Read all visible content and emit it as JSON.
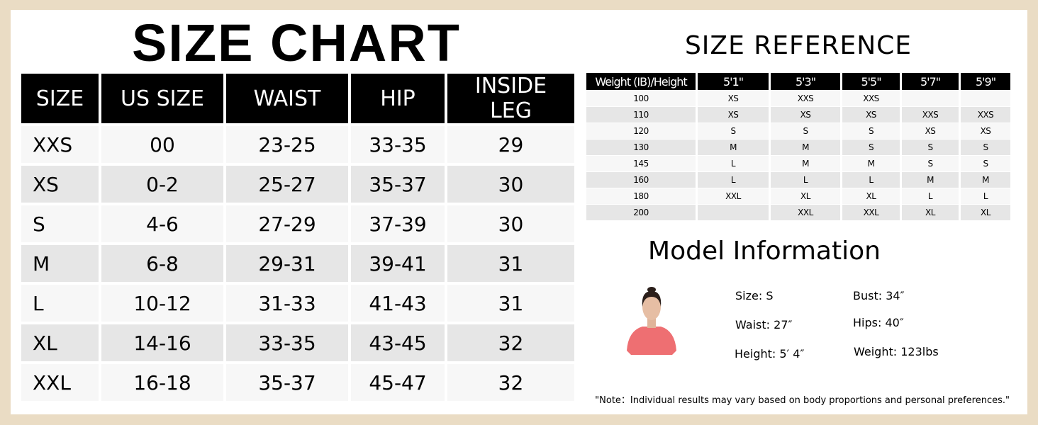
{
  "size_chart": {
    "title": "SIZE  CHART",
    "headers": [
      "SIZE",
      "US SIZE",
      "WAIST",
      "HIP",
      "INSIDE LEG"
    ],
    "rows": [
      [
        "XXS",
        "00",
        "23-25",
        "33-35",
        "29"
      ],
      [
        "XS",
        "0-2",
        "25-27",
        "35-37",
        "30"
      ],
      [
        "S",
        "4-6",
        "27-29",
        "37-39",
        "30"
      ],
      [
        "M",
        "6-8",
        "29-31",
        "39-41",
        "31"
      ],
      [
        "L",
        "10-12",
        "31-33",
        "41-43",
        "31"
      ],
      [
        "XL",
        "14-16",
        "33-35",
        "43-45",
        "32"
      ],
      [
        "XXL",
        "16-18",
        "35-37",
        "45-47",
        "32"
      ]
    ]
  },
  "size_reference": {
    "title": "SIZE  REFERENCE",
    "headers": [
      "Weight (IB)/Height",
      "5'1\"",
      "5'3\"",
      "5'5\"",
      "5'7\"",
      "5'9\""
    ],
    "rows": [
      [
        "100",
        "XS",
        "XXS",
        "XXS",
        "",
        ""
      ],
      [
        "110",
        "XS",
        "XS",
        "XS",
        "XXS",
        "XXS"
      ],
      [
        "120",
        "S",
        "S",
        "S",
        "XS",
        "XS"
      ],
      [
        "130",
        "M",
        "M",
        "S",
        "S",
        "S"
      ],
      [
        "145",
        "L",
        "M",
        "M",
        "S",
        "S"
      ],
      [
        "160",
        "L",
        "L",
        "L",
        "M",
        "M"
      ],
      [
        "180",
        "XXL",
        "XL",
        "XL",
        "L",
        "L"
      ],
      [
        "200",
        "",
        "XXL",
        "XXL",
        "XL",
        "XL"
      ]
    ]
  },
  "model": {
    "title": "Model Information",
    "size": "Size: S",
    "waist": "Waist: 27″",
    "height": "Height: 5′  4″",
    "bust": "Bust: 34″",
    "hips": "Hips: 40″",
    "weight": "Weight: 123lbs",
    "shirt_color": "#ee6f72"
  },
  "note": "\"Note：Individual results may vary based on body proportions and personal preferences.\""
}
